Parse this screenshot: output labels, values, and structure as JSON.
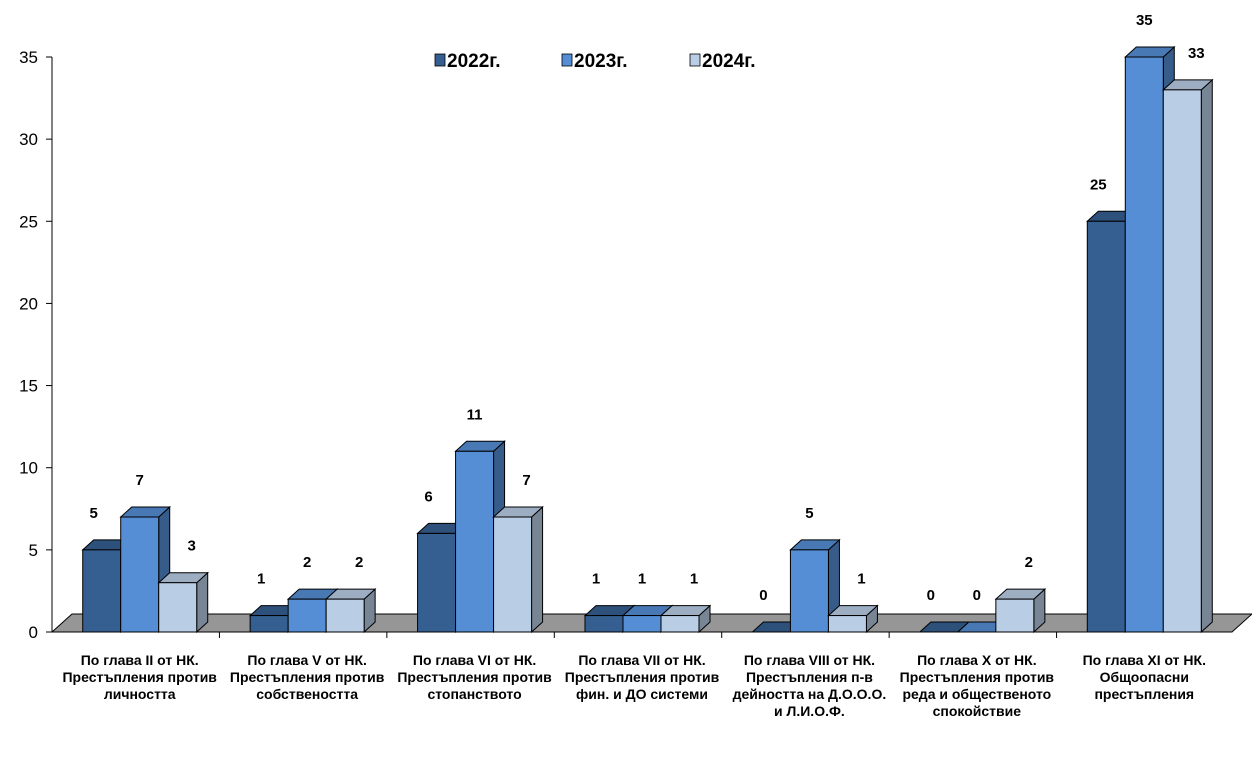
{
  "chart_data": {
    "type": "bar",
    "categories": [
      "По глава II от НК. Престъпления против личността",
      "По глава V от НК. Престъпления против собствеността",
      "По глава VI от НК. Престъпления против стопанството",
      "По глава VII от НК. Престъпления против фин. и ДО системи",
      "По глава VIII от НК. Престъпления п-в дейността на Д.О.О.О. и Л.И.О.Ф.",
      "По глава X от НК. Престъпления против реда и общественото спокойствие",
      "По глава XI от НК. Общоопасни престъпления"
    ],
    "series": [
      {
        "name": "2022г.",
        "values": [
          5,
          1,
          6,
          1,
          0,
          0,
          25
        ],
        "color": "#365f91"
      },
      {
        "name": "2023г.",
        "values": [
          7,
          2,
          11,
          1,
          5,
          0,
          35
        ],
        "color": "#558ed5"
      },
      {
        "name": "2024г.",
        "values": [
          3,
          2,
          7,
          1,
          1,
          2,
          33
        ],
        "color": "#b9cde5"
      }
    ],
    "ylim": [
      0,
      35
    ],
    "yticks": [
      0,
      5,
      10,
      15,
      20,
      25,
      30,
      35
    ],
    "grid": false,
    "legend_position": "top",
    "floor_color": "#969696",
    "three_d": true
  }
}
